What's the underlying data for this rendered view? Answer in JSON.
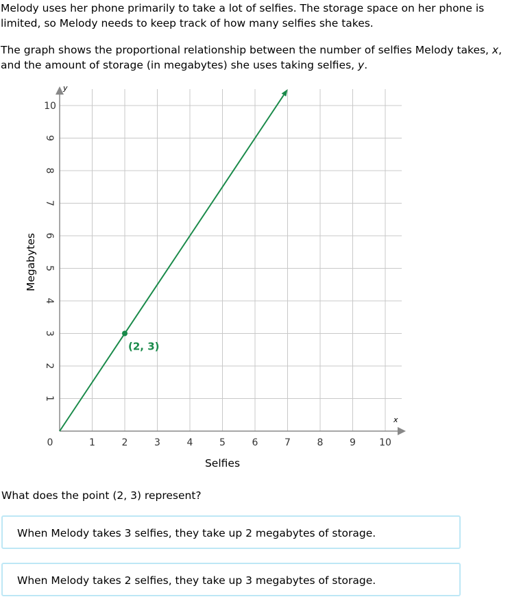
{
  "problem": {
    "paragraph1": "Melody uses her phone primarily to take a lot of selfies. The storage space on her phone is limited, so Melody needs to keep track of how many selfies she takes.",
    "paragraph2_parts": [
      "The graph shows the proportional relationship between the number of selfies Melody takes, ",
      "x",
      ",",
      " and the amount of storage (in megabytes) she uses taking selfies, ",
      "y",
      "."
    ],
    "question": "What does the point (2, 3) represent?"
  },
  "choices": [
    {
      "label": "When Melody takes 3 selfies, they take up 2 megabytes of storage."
    },
    {
      "label": "When Melody takes 2 selfies, they take up 3 megabytes of storage."
    }
  ],
  "chart_data": {
    "type": "line",
    "xlabel": "Selfies",
    "ylabel": "Megabytes",
    "x_axis_letter": "x",
    "y_axis_letter": "y",
    "xlim": [
      0,
      10
    ],
    "ylim": [
      0,
      10
    ],
    "x_ticks": [
      "0",
      "1",
      "2",
      "3",
      "4",
      "5",
      "6",
      "7",
      "8",
      "9",
      "10"
    ],
    "y_ticks": [
      "1",
      "2",
      "3",
      "4",
      "5",
      "6",
      "7",
      "8",
      "9",
      "10"
    ],
    "grid": true,
    "line": {
      "x": [
        0,
        7
      ],
      "y": [
        0,
        10.5
      ],
      "arrow_end": true,
      "color": "#1a8a4a"
    },
    "points": [
      {
        "x": 2,
        "y": 3,
        "label": "(2, 3)",
        "color": "#1a8a4a"
      }
    ]
  },
  "colors": {
    "grid": "#c8c8c8",
    "axis": "#888888",
    "accent": "#1a8a4a",
    "choice_border": "#bde7f5"
  }
}
